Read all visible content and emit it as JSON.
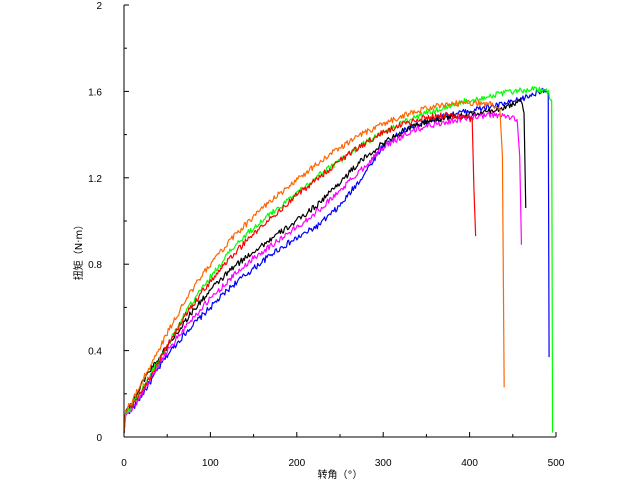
{
  "chart_data": {
    "type": "line",
    "title": "",
    "xlabel": "转角（°）",
    "ylabel": "扭矩（N·m）",
    "xlim": [
      0,
      500
    ],
    "ylim": [
      0,
      2
    ],
    "xticks": [
      0,
      100,
      200,
      300,
      400,
      500
    ],
    "yticks": [
      0,
      0.4,
      0.8,
      1.2,
      1.6,
      2
    ],
    "xtick_labels": [
      "0",
      "100",
      "200",
      "300",
      "400",
      "500"
    ],
    "ytick_labels": [
      "0",
      "0.4",
      "0.8",
      "1.2",
      "1.6",
      "2"
    ],
    "grid": false,
    "legend": "none",
    "series": [
      {
        "color": "#0000ff",
        "x": [
          0,
          2,
          10,
          25,
          50,
          75,
          100,
          125,
          150,
          175,
          200,
          225,
          250,
          275,
          300,
          325,
          350,
          375,
          400,
          425,
          450,
          470,
          480,
          487,
          491,
          492
        ],
        "y": [
          0.02,
          0.11,
          0.13,
          0.22,
          0.38,
          0.5,
          0.6,
          0.7,
          0.78,
          0.86,
          0.92,
          0.98,
          1.07,
          1.2,
          1.35,
          1.42,
          1.46,
          1.49,
          1.51,
          1.53,
          1.55,
          1.58,
          1.6,
          1.61,
          1.6,
          0.37
        ]
      },
      {
        "color": "#000000",
        "x": [
          0,
          2,
          10,
          25,
          50,
          75,
          100,
          125,
          150,
          175,
          200,
          225,
          250,
          275,
          300,
          325,
          350,
          375,
          400,
          425,
          450,
          460,
          463,
          465
        ],
        "y": [
          0.02,
          0.12,
          0.16,
          0.28,
          0.42,
          0.56,
          0.68,
          0.78,
          0.86,
          0.93,
          1.0,
          1.08,
          1.18,
          1.28,
          1.36,
          1.42,
          1.46,
          1.48,
          1.49,
          1.51,
          1.54,
          1.56,
          1.5,
          1.06
        ]
      },
      {
        "color": "#ff00ff",
        "x": [
          0,
          2,
          10,
          25,
          50,
          75,
          100,
          125,
          150,
          175,
          200,
          225,
          250,
          275,
          300,
          325,
          350,
          375,
          400,
          425,
          450,
          455,
          458,
          460
        ],
        "y": [
          0.02,
          0.1,
          0.13,
          0.23,
          0.4,
          0.53,
          0.64,
          0.74,
          0.83,
          0.9,
          0.97,
          1.05,
          1.14,
          1.24,
          1.34,
          1.4,
          1.44,
          1.46,
          1.48,
          1.49,
          1.48,
          1.47,
          1.3,
          0.89
        ]
      },
      {
        "color": "#00ff00",
        "x": [
          0,
          2,
          10,
          25,
          50,
          75,
          100,
          125,
          150,
          175,
          200,
          225,
          250,
          275,
          300,
          325,
          350,
          375,
          400,
          425,
          450,
          475,
          490,
          495,
          496
        ],
        "y": [
          0.02,
          0.11,
          0.15,
          0.25,
          0.42,
          0.6,
          0.74,
          0.87,
          0.97,
          1.05,
          1.13,
          1.21,
          1.28,
          1.35,
          1.41,
          1.46,
          1.5,
          1.53,
          1.56,
          1.58,
          1.6,
          1.61,
          1.6,
          1.56,
          0.02
        ]
      },
      {
        "color": "#ff0000",
        "x": [
          0,
          2,
          10,
          25,
          50,
          75,
          100,
          125,
          150,
          175,
          200,
          225,
          250,
          275,
          300,
          325,
          350,
          375,
          395,
          403,
          405,
          407
        ],
        "y": [
          0.02,
          0.12,
          0.15,
          0.24,
          0.42,
          0.59,
          0.72,
          0.84,
          0.94,
          1.03,
          1.12,
          1.2,
          1.28,
          1.35,
          1.41,
          1.45,
          1.48,
          1.49,
          1.48,
          1.47,
          1.15,
          0.93
        ]
      },
      {
        "color": "#ff6600",
        "x": [
          0,
          2,
          10,
          25,
          50,
          75,
          100,
          125,
          150,
          175,
          200,
          225,
          250,
          275,
          300,
          325,
          350,
          375,
          400,
          425,
          435,
          438,
          440
        ],
        "y": [
          0.02,
          0.12,
          0.17,
          0.29,
          0.48,
          0.66,
          0.8,
          0.92,
          1.02,
          1.11,
          1.19,
          1.27,
          1.34,
          1.4,
          1.45,
          1.49,
          1.52,
          1.54,
          1.55,
          1.54,
          1.52,
          1.3,
          0.23
        ]
      }
    ]
  }
}
